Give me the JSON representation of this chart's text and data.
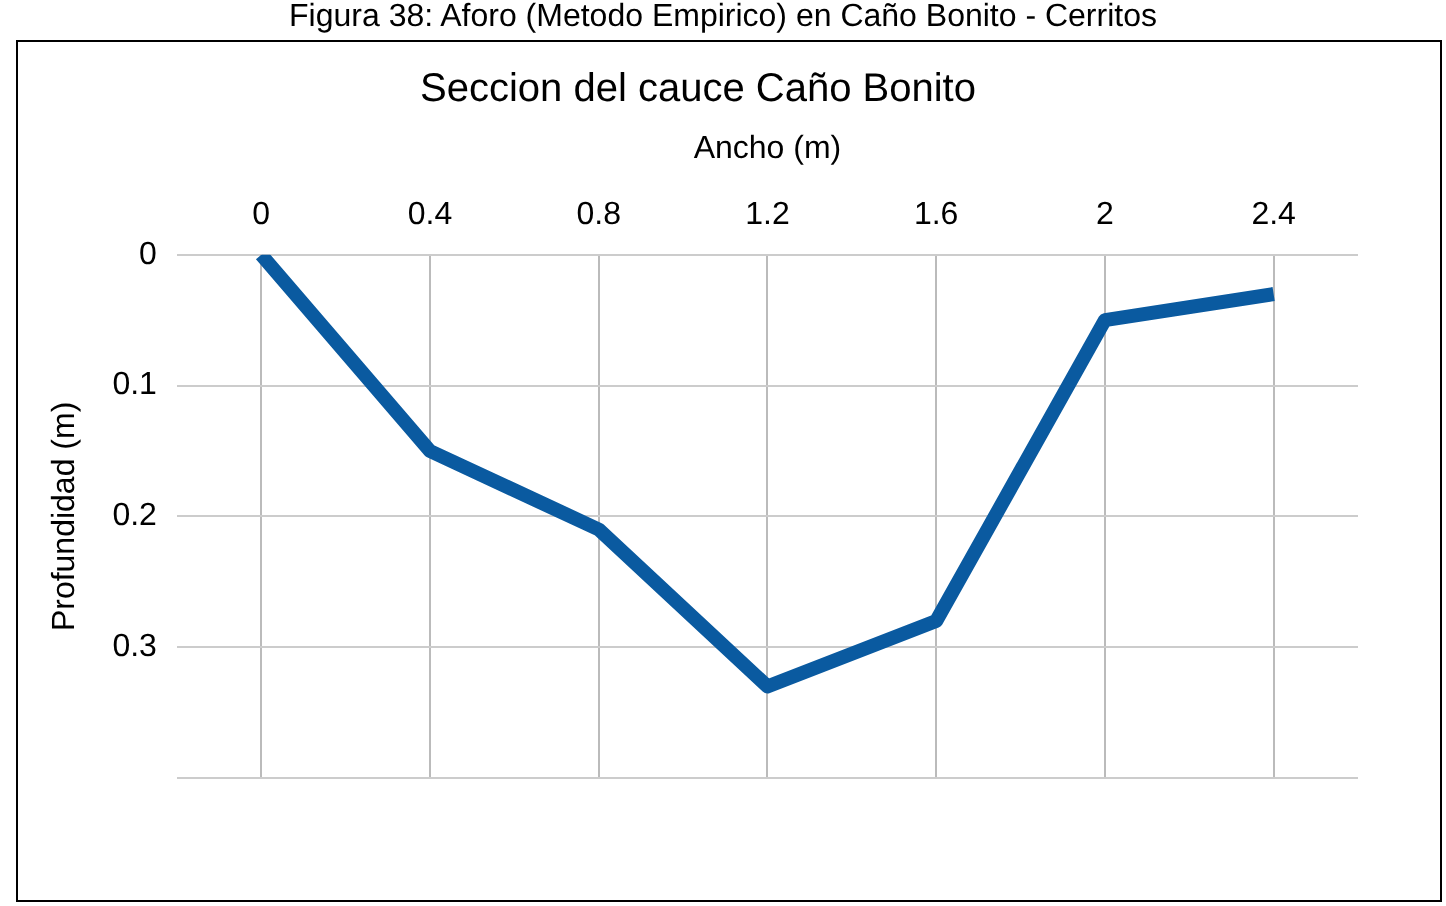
{
  "chart_data": {
    "type": "line",
    "title": "Seccion del cauce Caño Bonito",
    "xlabel": "Ancho (m)",
    "ylabel": "Profundidad (m)",
    "annotations": [
      "Figura 38: Aforo (Metodo Empirico) en Caño Bonito - Cerritos"
    ],
    "categories": [
      "0",
      "0.4",
      "0.8",
      "1.2",
      "1.6",
      "2",
      "2.4"
    ],
    "series": [
      {
        "color": "#0a5aa0",
        "values": [
          0,
          0.15,
          0.21,
          0.33,
          0.28,
          0.05,
          0.03
        ]
      }
    ],
    "ylim": [
      0.4,
      0
    ],
    "yticks": [
      0,
      0.1,
      0.2,
      0.3,
      {
        "value": 0.4,
        "label": null
      }
    ],
    "grid": true,
    "legend": false,
    "marker": "none",
    "line_style": "solid"
  }
}
